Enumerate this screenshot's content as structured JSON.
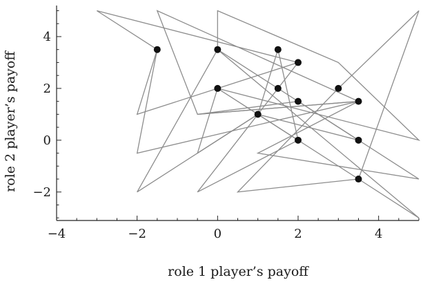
{
  "chart_data": {
    "type": "scatter",
    "xlabel": "role 1 player’s payoff",
    "ylabel": "role 2 player’s payoff",
    "xlim": [
      -4,
      5
    ],
    "ylim": [
      -3.1,
      5.2
    ],
    "x_ticks": [
      -4,
      -2,
      0,
      2,
      4
    ],
    "y_ticks": [
      -2,
      0,
      2,
      4
    ],
    "x_tick_labels": [
      "−4",
      "−2",
      "0",
      "2",
      "4"
    ],
    "y_tick_labels": [
      "−2",
      "0",
      "2",
      "4"
    ],
    "grid": false,
    "colors": {
      "points": "#111111",
      "polygons": "#8c8c8c",
      "axes": "#222222"
    },
    "points": [
      [
        -1.5,
        3.5
      ],
      [
        0,
        3.5
      ],
      [
        1.5,
        3.5
      ],
      [
        2,
        3
      ],
      [
        0,
        2
      ],
      [
        1.5,
        2
      ],
      [
        3,
        2
      ],
      [
        2,
        1.5
      ],
      [
        3.5,
        1.5
      ],
      [
        1,
        1
      ],
      [
        2,
        0
      ],
      [
        3.5,
        0
      ],
      [
        3.5,
        -1.5
      ]
    ],
    "polygons": [
      [
        [
          -3,
          5
        ],
        [
          -1.5,
          3.5
        ],
        [
          -2,
          1
        ],
        [
          2,
          3
        ],
        [
          -3,
          5
        ]
      ],
      [
        [
          -1.5,
          3.5
        ],
        [
          -2,
          -0.5
        ],
        [
          3.5,
          1.5
        ],
        [
          -0.5,
          1
        ],
        [
          -1.5,
          5
        ],
        [
          3.5,
          1.5
        ]
      ],
      [
        [
          0,
          3.5
        ],
        [
          -2,
          -2
        ],
        [
          1,
          1
        ],
        [
          3.5,
          -1.5
        ],
        [
          5,
          -3
        ],
        [
          0,
          3.5
        ]
      ],
      [
        [
          0,
          2
        ],
        [
          2,
          0
        ],
        [
          1,
          1
        ],
        [
          -0.5,
          -0.5
        ],
        [
          0,
          2
        ]
      ],
      [
        [
          1.5,
          3.5
        ],
        [
          1,
          1
        ],
        [
          -0.5,
          -2
        ],
        [
          2,
          0
        ],
        [
          1.5,
          3.5
        ]
      ],
      [
        [
          1.5,
          2
        ],
        [
          0,
          3.5
        ],
        [
          0,
          5
        ],
        [
          3,
          3
        ],
        [
          5,
          0
        ],
        [
          0,
          2
        ]
      ],
      [
        [
          3,
          2
        ],
        [
          0.5,
          -2
        ],
        [
          3.5,
          -1.5
        ],
        [
          5,
          5
        ],
        [
          3,
          2
        ]
      ],
      [
        [
          2,
          1.5
        ],
        [
          -0.5,
          1
        ],
        [
          3.5,
          1.5
        ],
        [
          1,
          -0.5
        ],
        [
          5,
          -1.5
        ],
        [
          2,
          1.5
        ]
      ],
      [
        [
          3.5,
          0
        ],
        [
          1.5,
          2
        ],
        [
          2,
          3
        ],
        [
          1,
          1
        ],
        [
          3.5,
          0
        ]
      ]
    ]
  }
}
